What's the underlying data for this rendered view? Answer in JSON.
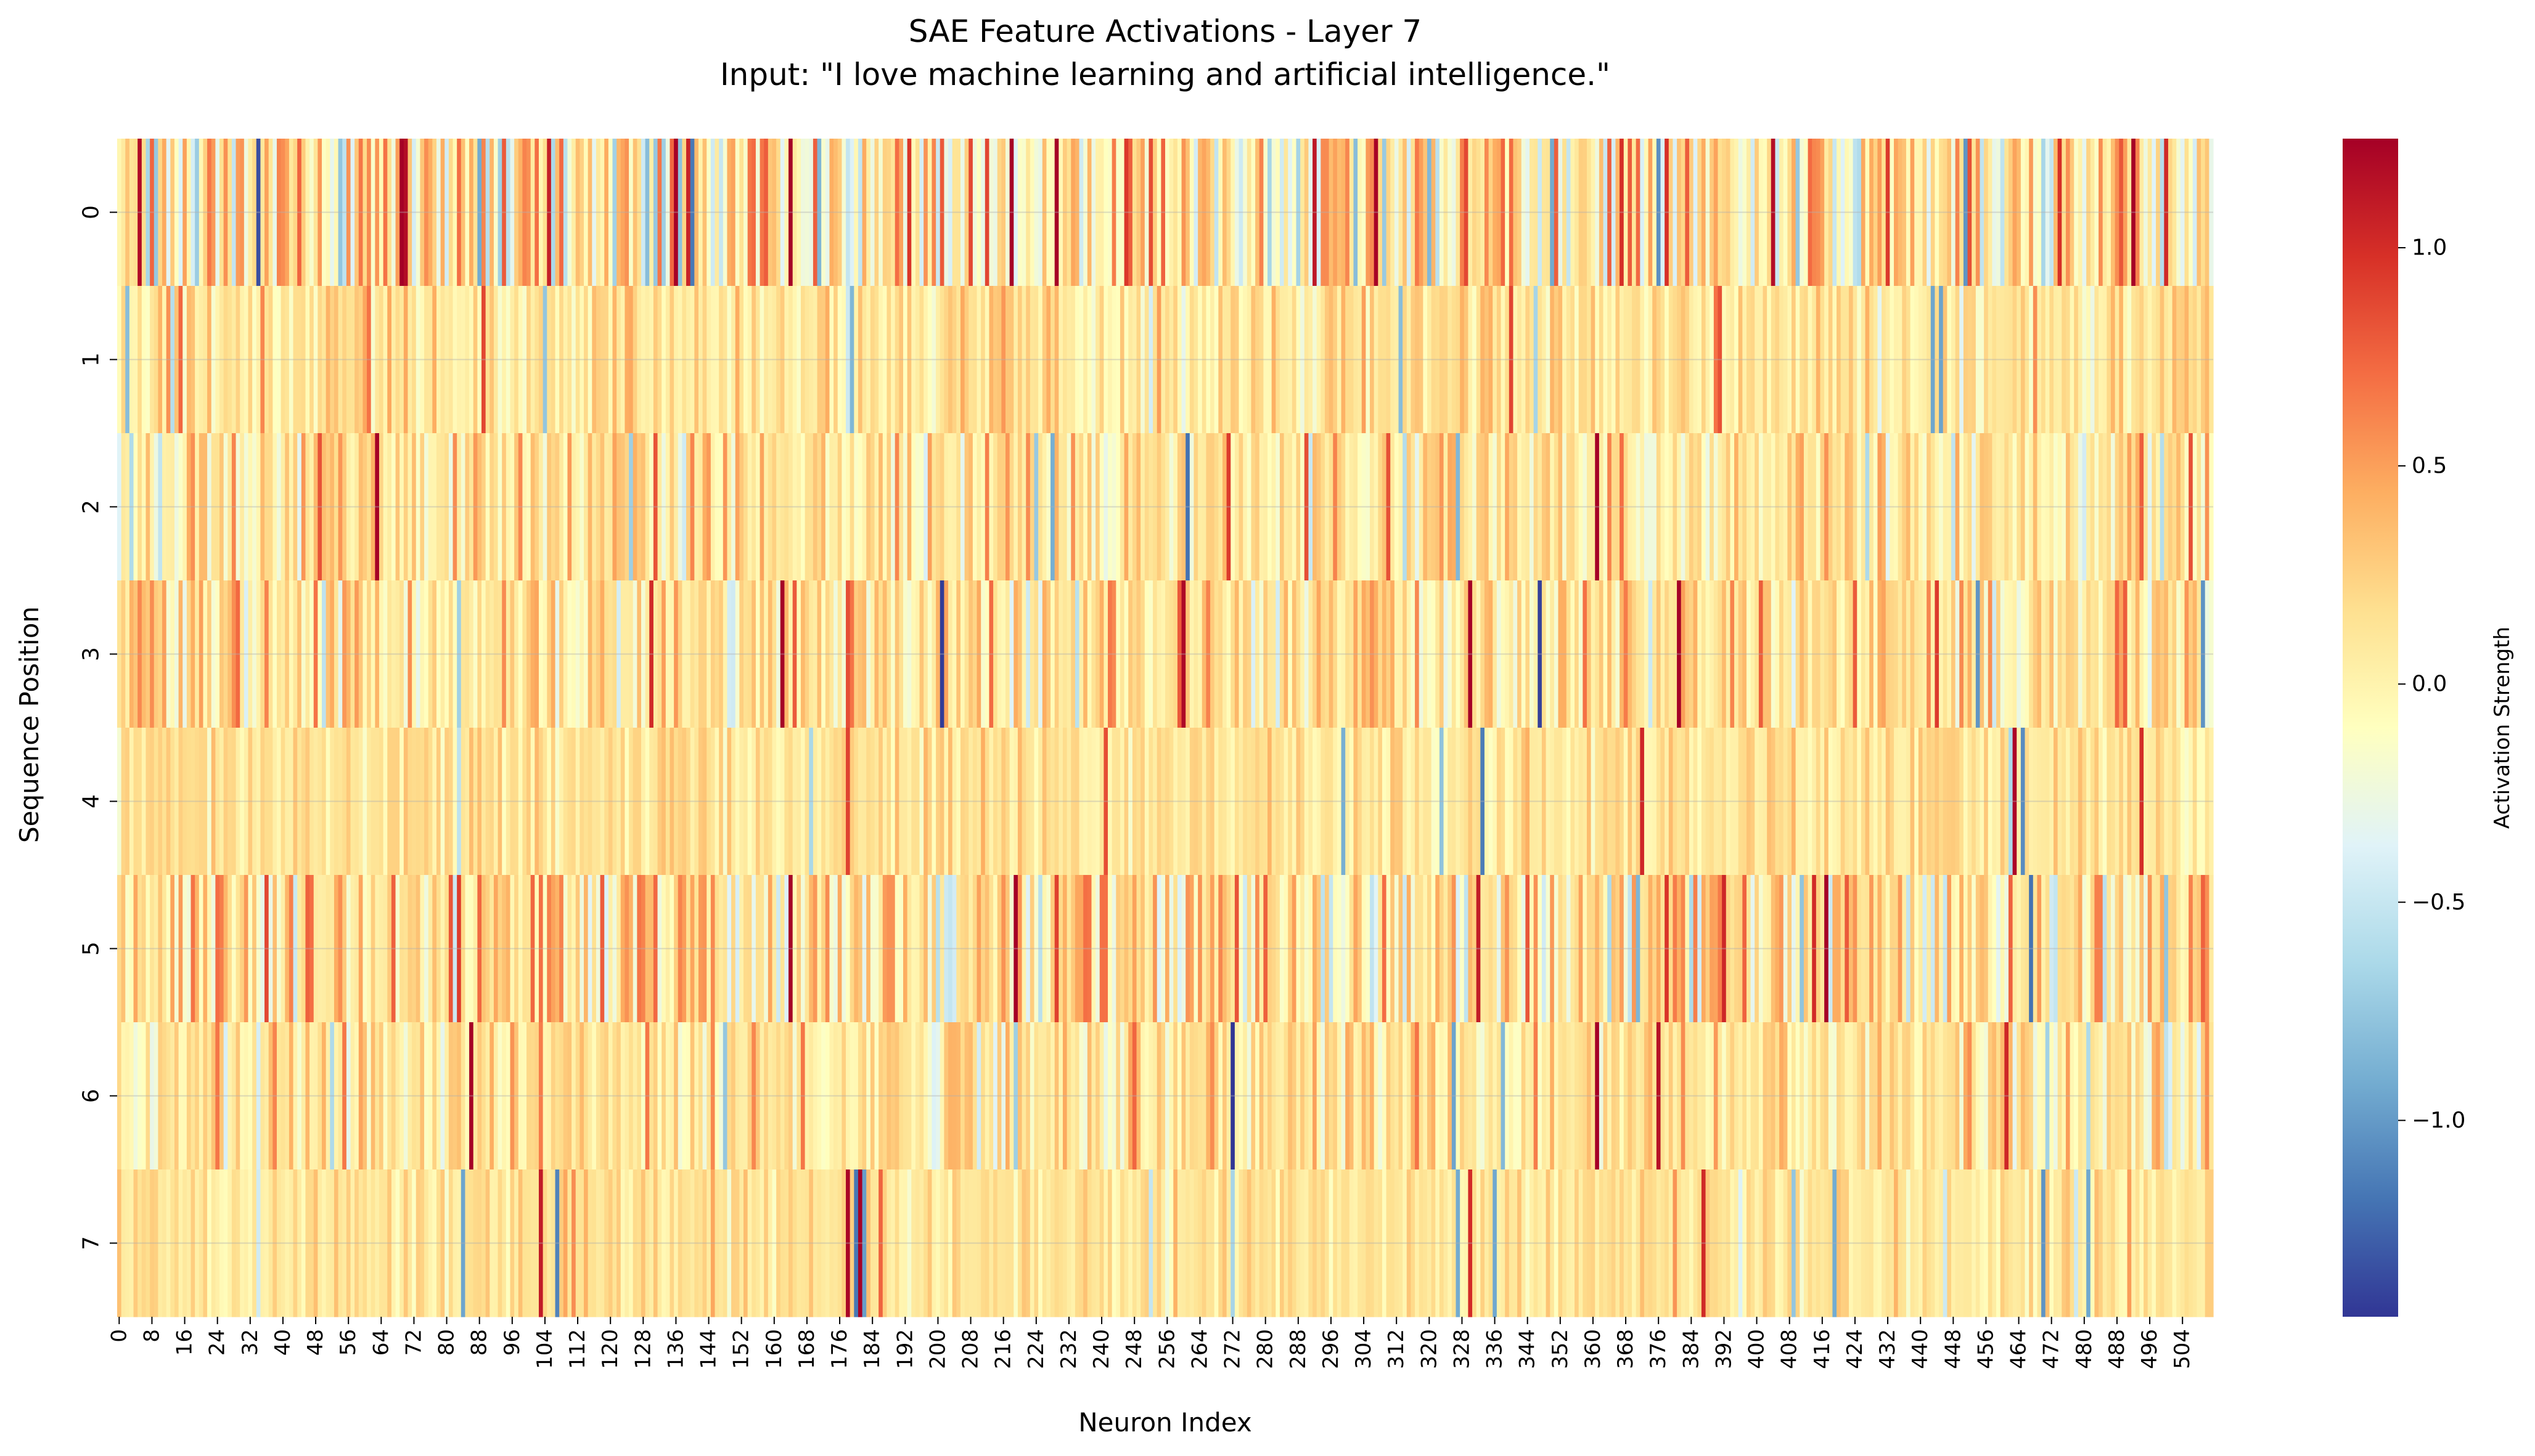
{
  "chart_data": {
    "type": "heatmap",
    "title": "SAE Feature Activations - Layer 7",
    "subtitle": "Input: \"I love machine learning and artificial intelligence.\"",
    "xlabel": "Neuron Index",
    "ylabel": "Sequence Position",
    "colorbar_label": "Activation Strength",
    "colormap": "RdYlBu_r",
    "colormap_stops": [
      "#313695",
      "#4575b4",
      "#74add1",
      "#abd9e9",
      "#e0f3f8",
      "#ffffbf",
      "#fee090",
      "#fdae61",
      "#f46d43",
      "#d73027",
      "#a50026"
    ],
    "vmin": -1.45,
    "vmax": 1.25,
    "colorbar_ticks": [
      {
        "value": 1.0,
        "label": "1.0"
      },
      {
        "value": 0.5,
        "label": "0.5"
      },
      {
        "value": 0.0,
        "label": "0.0"
      },
      {
        "value": -0.5,
        "label": "−0.5"
      },
      {
        "value": -1.0,
        "label": "−1.0"
      }
    ],
    "n_cols": 512,
    "x_tick_step": 8,
    "rows": [
      0,
      1,
      2,
      3,
      4,
      5,
      6,
      7
    ],
    "row_value_scale": [
      0.45,
      0.17,
      0.22,
      0.24,
      0.13,
      0.32,
      0.22,
      0.12
    ],
    "grid": true
  }
}
